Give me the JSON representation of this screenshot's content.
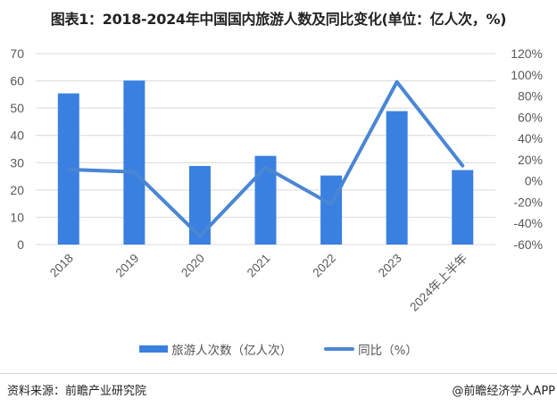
{
  "title": "图表1：2018-2024年中国国内旅游人数及同比变化(单位：亿人次，%)",
  "footer": {
    "source": "资料来源：前瞻产业研究院",
    "brand": "@前瞻经济学人APP"
  },
  "legend": {
    "bar_label": "旅游人次数（亿人次）",
    "line_label": "同比（%）"
  },
  "colors": {
    "bar": "#3a80e0",
    "line": "#4a86d4",
    "grid": "#d9d9d9",
    "axis_text": "#595959"
  },
  "chart_data": {
    "type": "bar+line",
    "title": "图表1：2018-2024年中国国内旅游人数及同比变化(单位：亿人次，%)",
    "categories": [
      "2018",
      "2019",
      "2020",
      "2021",
      "2022",
      "2023",
      "2024年上半年"
    ],
    "series": [
      {
        "name": "旅游人次数（亿人次）",
        "type": "bar",
        "axis": "left",
        "values": [
          55.4,
          60.1,
          28.8,
          32.5,
          25.3,
          48.9,
          27.3
        ]
      },
      {
        "name": "同比（%）",
        "type": "line",
        "axis": "right",
        "values": [
          10.8,
          8.4,
          -52.1,
          12.8,
          -22.1,
          93.3,
          14.3
        ]
      }
    ],
    "left_axis": {
      "ylim": [
        0,
        70
      ],
      "ticks": [
        "0",
        "10",
        "20",
        "30",
        "40",
        "50",
        "60",
        "70"
      ]
    },
    "right_axis": {
      "ylim": [
        -60,
        120
      ],
      "ticks": [
        "-60%",
        "-40%",
        "-20%",
        "0%",
        "20%",
        "40%",
        "60%",
        "80%",
        "100%",
        "120%"
      ]
    },
    "xlabel": "",
    "ylabel": "",
    "grid": true,
    "legend_position": "bottom"
  }
}
